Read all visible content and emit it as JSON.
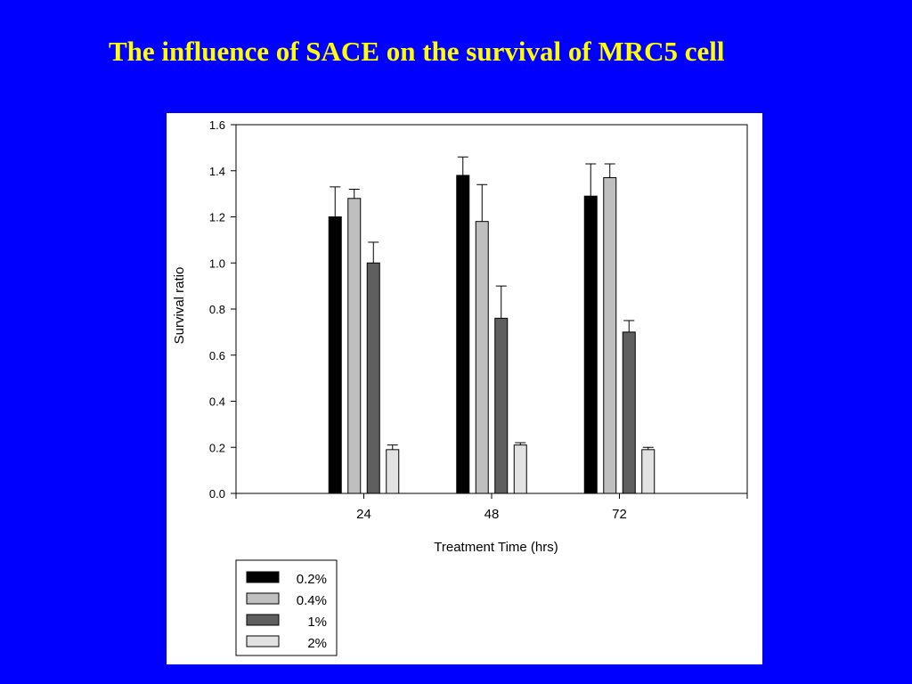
{
  "slide": {
    "title": "The influence of SACE on the survival of MRC5 cell"
  },
  "colors": {
    "background": "#0000ff",
    "title": "#ffff00",
    "panel": "#ffffff"
  },
  "chart_data": {
    "type": "bar",
    "title": "",
    "xlabel": "Treatment Time (hrs)",
    "ylabel": "Survival ratio",
    "categories": [
      "24",
      "48",
      "72"
    ],
    "ylim": [
      0,
      1.6
    ],
    "yticks": [
      "0.0",
      "0.2",
      "0.4",
      "0.6",
      "0.8",
      "1.0",
      "1.2",
      "1.4",
      "1.6"
    ],
    "grid": false,
    "legend_position": "bottom-left",
    "series": [
      {
        "name": "0.2%",
        "color": "#000000",
        "values": [
          1.2,
          1.38,
          1.29
        ],
        "errors": [
          0.13,
          0.08,
          0.14
        ]
      },
      {
        "name": "0.4%",
        "color": "#bfbfbf",
        "values": [
          1.28,
          1.18,
          1.37
        ],
        "errors": [
          0.04,
          0.16,
          0.06
        ]
      },
      {
        "name": "1%",
        "color": "#5f5f5f",
        "values": [
          1.0,
          0.76,
          0.7
        ],
        "errors": [
          0.09,
          0.14,
          0.05
        ]
      },
      {
        "name": "2%",
        "color": "#e2e2e2",
        "values": [
          0.19,
          0.21,
          0.19
        ],
        "errors": [
          0.02,
          0.01,
          0.01
        ]
      }
    ]
  }
}
